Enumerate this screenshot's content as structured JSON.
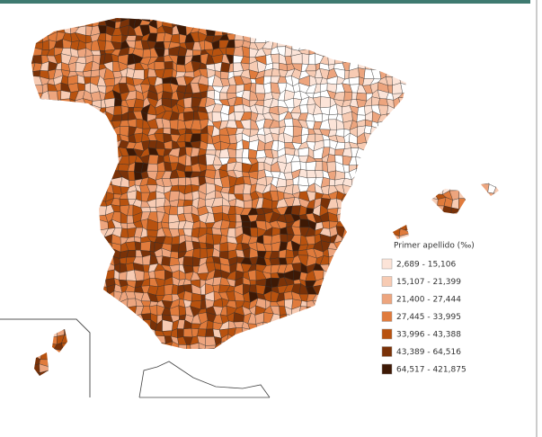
{
  "legend": {
    "title": "Primer apellido (‰)",
    "items": [
      {
        "label": "2,689 - 15,106",
        "color": "#fce4d8"
      },
      {
        "label": "15,107 - 21,399",
        "color": "#f7cbb3"
      },
      {
        "label": "21,400 - 27,444",
        "color": "#eda57e"
      },
      {
        "label": "27,445 - 33,995",
        "color": "#e07b3c"
      },
      {
        "label": "33,996 - 43,388",
        "color": "#b8520f"
      },
      {
        "label": "43,389 - 64,516",
        "color": "#7a3208"
      },
      {
        "label": "64,517 - 421,875",
        "color": "#3e1905"
      }
    ]
  }
}
